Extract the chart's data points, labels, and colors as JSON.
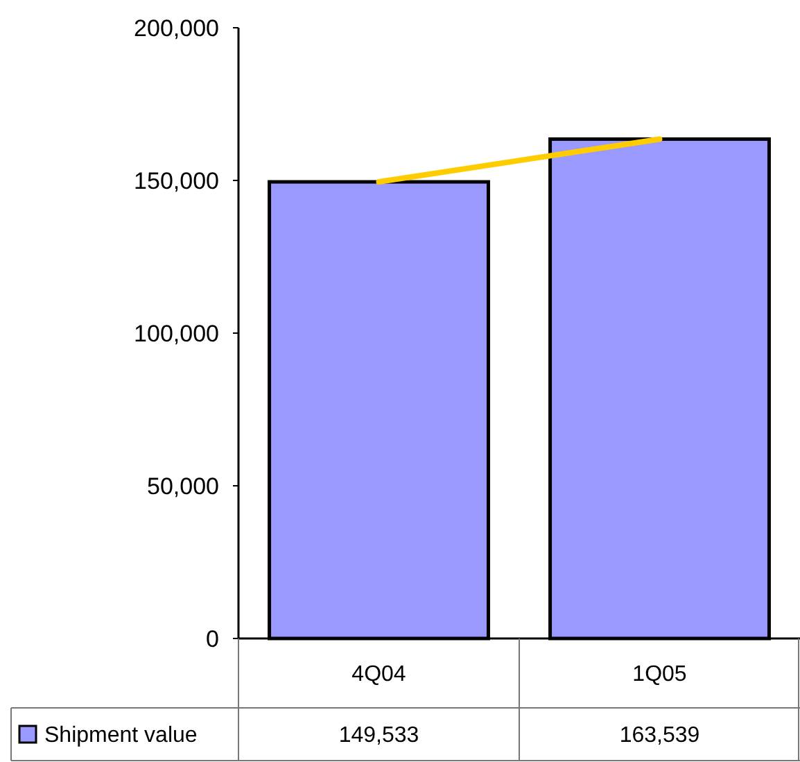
{
  "chart_data": {
    "type": "bar",
    "categories": [
      "4Q04",
      "1Q05"
    ],
    "series": [
      {
        "name": "Shipment value",
        "color": "#9999ff",
        "values": [
          149533,
          163539
        ],
        "value_labels": [
          "149,533",
          "163,539"
        ]
      },
      {
        "type": "line",
        "color": "#ffcc00",
        "values": [
          149533,
          163539
        ]
      }
    ],
    "ylim": [
      0,
      200000
    ],
    "yticks": [
      {
        "value": 0,
        "label": "0"
      },
      {
        "value": 50000,
        "label": "50,000"
      },
      {
        "value": 100000,
        "label": "100,000"
      },
      {
        "value": 150000,
        "label": "150,000"
      },
      {
        "value": 200000,
        "label": "200,000"
      }
    ],
    "legend": "bottom left",
    "grid": false
  }
}
